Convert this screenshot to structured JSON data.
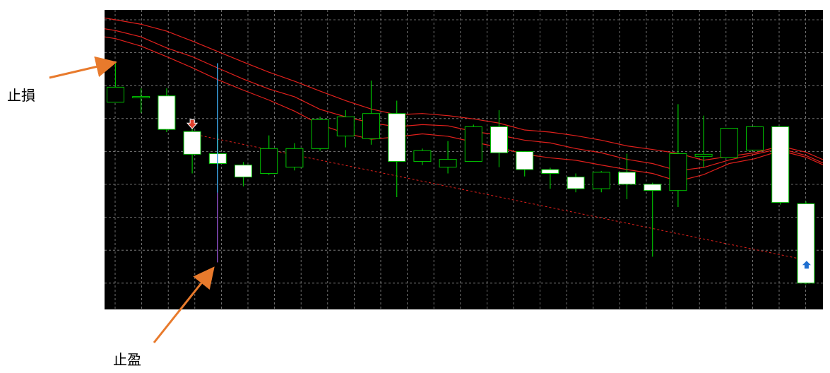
{
  "annotations": {
    "stop_loss_label": "止損",
    "take_profit_label": "止盈"
  },
  "colors": {
    "background": "#000000",
    "grid": "#8a8a8a",
    "bull_outline": "#00c000",
    "bear_body": "#ffffff",
    "ma_line": "#e0201c",
    "projection_line": "#e0201c",
    "arrow_callout": "#e87a2c",
    "sell_marker": "#e0402c",
    "buy_marker": "#1f6fd0",
    "entry_line_top": "#3aa0e0",
    "entry_line_bottom": "#8a4cc0"
  },
  "chart_data": {
    "type": "candlestick",
    "title": "",
    "xlabel": "",
    "ylabel": "",
    "grid": true,
    "ylim": [
      0,
      100
    ],
    "candles": [
      {
        "open": 69.2,
        "high": 82.2,
        "low": 69.2,
        "close": 74.2
      },
      {
        "open": 71.1,
        "high": 73.8,
        "low": 65.6,
        "close": 71.1
      },
      {
        "open": 71.3,
        "high": 73.8,
        "low": 59.2,
        "close": 60.1
      },
      {
        "open": 59.4,
        "high": 62.4,
        "low": 45.4,
        "close": 51.8
      },
      {
        "open": 52.0,
        "high": 58.7,
        "low": 46.9,
        "close": 48.7
      },
      {
        "open": 48.2,
        "high": 49.2,
        "low": 41.1,
        "close": 44.2
      },
      {
        "open": 45.4,
        "high": 58.1,
        "low": 44.9,
        "close": 53.7
      },
      {
        "open": 47.5,
        "high": 55.5,
        "low": 46.4,
        "close": 53.7
      },
      {
        "open": 53.7,
        "high": 64.3,
        "low": 53.0,
        "close": 63.4
      },
      {
        "open": 57.9,
        "high": 66.5,
        "low": 54.1,
        "close": 64.3
      },
      {
        "open": 57.0,
        "high": 76.4,
        "low": 55.0,
        "close": 65.4
      },
      {
        "open": 65.4,
        "high": 69.7,
        "low": 37.5,
        "close": 49.4
      },
      {
        "open": 49.4,
        "high": 53.7,
        "low": 48.2,
        "close": 53.0
      },
      {
        "open": 47.5,
        "high": 56.2,
        "low": 45.4,
        "close": 50.1
      },
      {
        "open": 49.4,
        "high": 61.7,
        "low": 49.4,
        "close": 61.0
      },
      {
        "open": 61.0,
        "high": 66.5,
        "low": 47.5,
        "close": 52.3
      },
      {
        "open": 52.7,
        "high": 52.7,
        "low": 44.4,
        "close": 46.7
      },
      {
        "open": 46.7,
        "high": 47.3,
        "low": 40.3,
        "close": 45.4
      },
      {
        "open": 44.2,
        "high": 45.4,
        "low": 39.1,
        "close": 40.3
      },
      {
        "open": 40.3,
        "high": 46.2,
        "low": 39.1,
        "close": 45.8
      },
      {
        "open": 45.8,
        "high": 52.0,
        "low": 36.8,
        "close": 41.8
      },
      {
        "open": 41.8,
        "high": 42.3,
        "low": 17.6,
        "close": 39.7
      },
      {
        "open": 39.7,
        "high": 68.5,
        "low": 34.2,
        "close": 52.0
      },
      {
        "open": 51.1,
        "high": 64.7,
        "low": 47.5,
        "close": 51.8
      },
      {
        "open": 50.8,
        "high": 59.7,
        "low": 50.8,
        "close": 60.5
      },
      {
        "open": 53.2,
        "high": 61.2,
        "low": 53.2,
        "close": 61.0
      },
      {
        "open": 61.0,
        "high": 61.0,
        "low": 35.0,
        "close": 35.7
      },
      {
        "open": 35.3,
        "high": 36.1,
        "low": 8.4,
        "close": 8.8
      }
    ],
    "series": [
      {
        "values": [
          96.7,
          95.2,
          92.9,
          89.6,
          86.1,
          82.6,
          79.2,
          76.2,
          72.9,
          69.7,
          66.9,
          65.0,
          65.4,
          64.7,
          63.6,
          62.2,
          59.9,
          59.2,
          58.0,
          56.5,
          54.6,
          53.4,
          52.1,
          49.8,
          51.1,
          52.3,
          54.5,
          52.5
        ]
      },
      {
        "values": [
          93.1,
          91.0,
          87.3,
          84.4,
          80.6,
          76.9,
          73.6,
          71.0,
          66.8,
          64.3,
          62.3,
          61.0,
          61.7,
          61.3,
          59.4,
          58.2,
          56.5,
          55.6,
          53.7,
          52.3,
          50.1,
          48.7,
          46.3,
          47.4,
          49.9,
          51.8,
          53.7,
          51.4
        ]
      },
      {
        "values": [
          90.4,
          87.9,
          84.4,
          80.7,
          76.7,
          73.2,
          69.9,
          66.2,
          61.7,
          58.8,
          56.8,
          57.6,
          58.6,
          57.8,
          55.9,
          54.1,
          51.8,
          50.6,
          49.8,
          48.2,
          46.7,
          45.4,
          42.8,
          45.0,
          48.7,
          50.3,
          53.0,
          50.8
        ]
      }
    ],
    "projection_line": {
      "from": {
        "index": 3,
        "value": 58.6
      },
      "to": {
        "index": 27,
        "value": 16.5
      }
    },
    "entry_signal": {
      "index": 3,
      "direction": "sell",
      "value": 61.5
    },
    "exit_signal": {
      "index": 27,
      "direction": "buy",
      "value": 14.8
    },
    "vertical_marker": {
      "index": 4,
      "from": 82.2,
      "to": 15.7
    }
  }
}
